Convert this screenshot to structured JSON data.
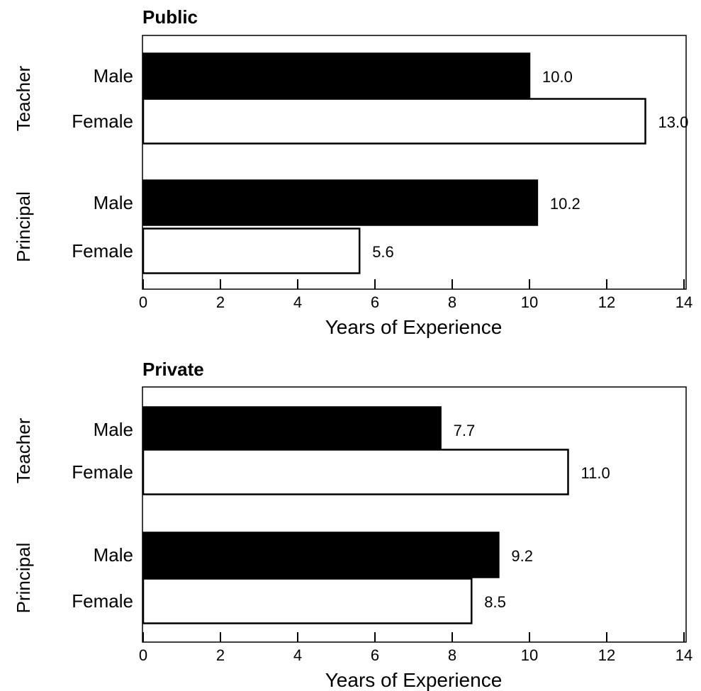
{
  "chart_data": [
    {
      "type": "bar",
      "orientation": "horizontal",
      "title": "Public",
      "xlabel": "Years of Experience",
      "xlim": [
        0,
        14
      ],
      "xticks": [
        0,
        2,
        4,
        6,
        8,
        10,
        12,
        14
      ],
      "grid": false,
      "groups": [
        {
          "label": "Teacher",
          "bars": [
            {
              "label": "Male",
              "value": 10.0,
              "value_label": "10.0",
              "fill": "#000000"
            },
            {
              "label": "Female",
              "value": 13.0,
              "value_label": "13.0",
              "fill": "#ffffff"
            }
          ]
        },
        {
          "label": "Principal",
          "bars": [
            {
              "label": "Male",
              "value": 10.2,
              "value_label": "10.2",
              "fill": "#000000"
            },
            {
              "label": "Female",
              "value": 5.6,
              "value_label": "5.6",
              "fill": "#ffffff"
            }
          ]
        }
      ]
    },
    {
      "type": "bar",
      "orientation": "horizontal",
      "title": "Private",
      "xlabel": "Years of Experience",
      "xlim": [
        0,
        14
      ],
      "xticks": [
        0,
        2,
        4,
        6,
        8,
        10,
        12,
        14
      ],
      "grid": false,
      "groups": [
        {
          "label": "Teacher",
          "bars": [
            {
              "label": "Male",
              "value": 7.7,
              "value_label": "7.7",
              "fill": "#000000"
            },
            {
              "label": "Female",
              "value": 11.0,
              "value_label": "11.0",
              "fill": "#ffffff"
            }
          ]
        },
        {
          "label": "Principal",
          "bars": [
            {
              "label": "Male",
              "value": 9.2,
              "value_label": "9.2",
              "fill": "#000000"
            },
            {
              "label": "Female",
              "value": 8.5,
              "value_label": "8.5",
              "fill": "#ffffff"
            }
          ]
        }
      ]
    }
  ]
}
